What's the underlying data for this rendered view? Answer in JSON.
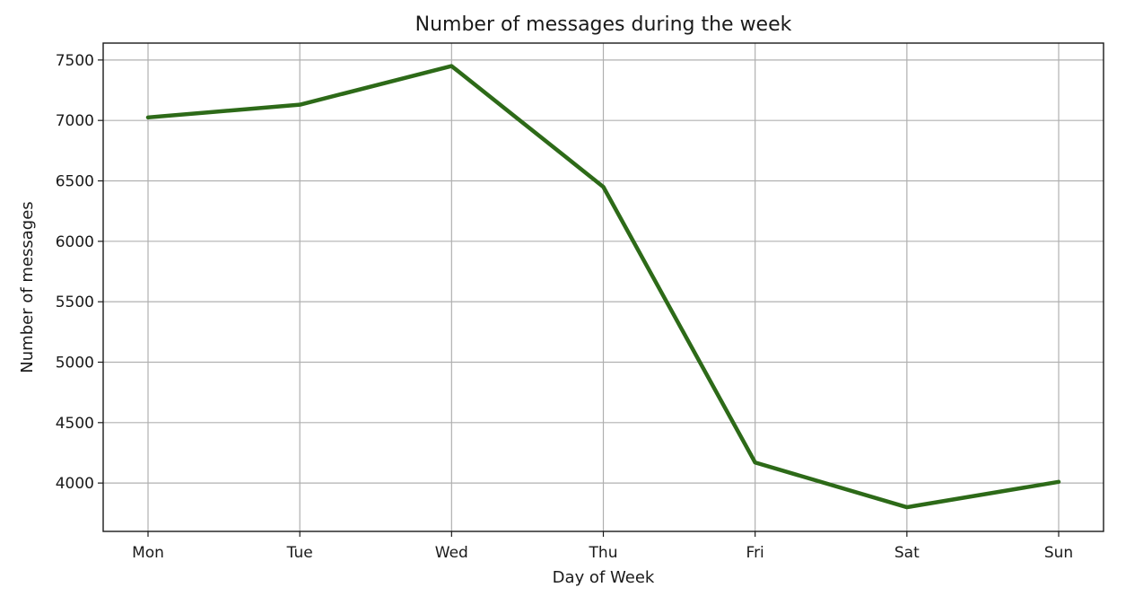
{
  "chart_data": {
    "type": "line",
    "title": "Number of messages during the week",
    "xlabel": "Day of Week",
    "ylabel": "Number of messages",
    "categories": [
      "Mon",
      "Tue",
      "Wed",
      "Thu",
      "Fri",
      "Sat",
      "Sun"
    ],
    "series": [
      {
        "values": [
          7025,
          7130,
          7450,
          6450,
          4170,
          3800,
          4010
        ],
        "color": "#2d6a18"
      }
    ],
    "ylim": [
      3600,
      7640
    ],
    "yticks": [
      4000,
      4500,
      5000,
      5500,
      6000,
      6500,
      7000,
      7500
    ],
    "grid": true,
    "legend": "none"
  }
}
